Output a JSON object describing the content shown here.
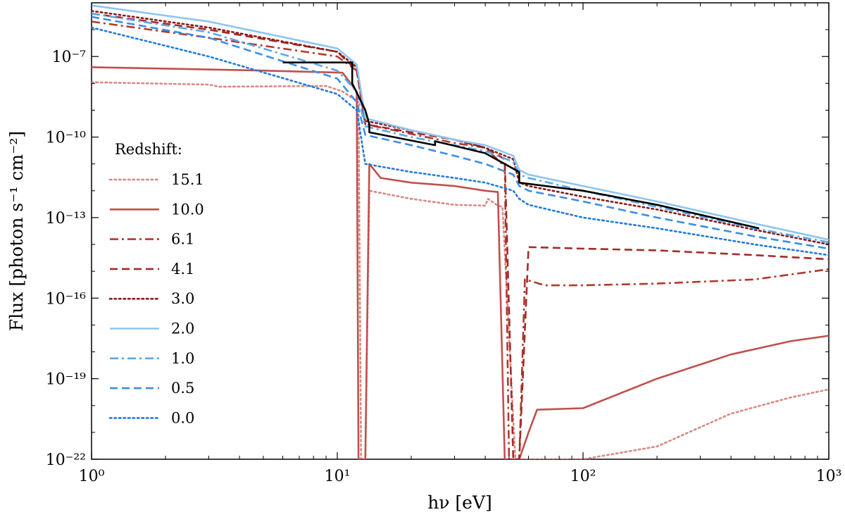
{
  "chart_data": {
    "type": "line",
    "title": "",
    "xlabel": "hν [eV]",
    "ylabel": "Flux [photon s⁻¹ cm⁻²]",
    "xscale": "log",
    "yscale": "log",
    "xlim": [
      1,
      1000
    ],
    "ylim": [
      1e-22,
      1e-05
    ],
    "x_ticks": [
      {
        "value": 1,
        "label": "10⁰"
      },
      {
        "value": 10,
        "label": "10¹"
      },
      {
        "value": 100,
        "label": "10²"
      },
      {
        "value": 1000,
        "label": "10³"
      }
    ],
    "y_ticks": [
      {
        "value": 1e-22,
        "label": "10⁻²²"
      },
      {
        "value": 1e-19,
        "label": "10⁻¹⁹"
      },
      {
        "value": 1e-16,
        "label": "10⁻¹⁶"
      },
      {
        "value": 1e-13,
        "label": "10⁻¹³"
      },
      {
        "value": 1e-10,
        "label": "10⁻¹⁰"
      },
      {
        "value": 1e-07,
        "label": "10⁻⁷"
      }
    ],
    "grid": false,
    "legend": {
      "title": "Redshift:",
      "placement": "left"
    },
    "series": [
      {
        "name": "15.1",
        "color": "#d98880",
        "dash": "dotted",
        "x": [
          1,
          3,
          3.3,
          9,
          10.5,
          12.2,
          12.5,
          13,
          13.5,
          20,
          30,
          40,
          41,
          45,
          47,
          53,
          60,
          100,
          200,
          400,
          700,
          1000
        ],
        "y": [
          1.1e-08,
          9e-09,
          7.5e-09,
          8e-09,
          5e-09,
          2e-09,
          1e-22,
          1e-22,
          1e-12,
          5e-13,
          3e-13,
          2.8e-13,
          5e-13,
          2.8e-13,
          2.5e-13,
          1e-22,
          1e-22,
          1e-22,
          3e-22,
          5e-21,
          2e-20,
          4e-20
        ]
      },
      {
        "name": "10.0",
        "color": "#c0504d",
        "dash": "solid",
        "x": [
          1,
          5,
          10.5,
          12,
          12.2,
          12.5,
          13,
          13.5,
          15,
          20,
          30,
          40,
          45,
          48,
          52,
          55,
          60,
          65,
          100,
          200,
          400,
          700,
          1000
        ],
        "y": [
          4e-08,
          3e-08,
          2.5e-08,
          5e-09,
          1e-22,
          1e-22,
          1e-22,
          1e-11,
          3e-12,
          2e-12,
          1.5e-12,
          1e-12,
          9e-13,
          1e-22,
          1e-22,
          1e-22,
          1e-21,
          7e-21,
          8e-21,
          1e-19,
          8e-19,
          2.5e-18,
          4e-18
        ]
      },
      {
        "name": "6.1",
        "color": "#b03a2e",
        "dash": "dashdot",
        "x": [
          1,
          3,
          10,
          12,
          13,
          20,
          30,
          40,
          48,
          50,
          52,
          55,
          58,
          70,
          100,
          200,
          500,
          1000
        ],
        "y": [
          2e-06,
          5e-07,
          1e-07,
          3e-08,
          3e-10,
          1.3e-10,
          6e-11,
          4e-11,
          8e-12,
          1e-22,
          1e-22,
          1e-22,
          5e-16,
          3e-16,
          3e-16,
          3.5e-16,
          5e-16,
          1.2e-15
        ]
      },
      {
        "name": "4.1",
        "color": "#a52a2a",
        "dash": "dashed",
        "x": [
          1,
          3,
          10,
          12,
          13,
          20,
          30,
          40,
          48,
          52,
          55,
          60,
          100,
          200,
          500,
          1000
        ],
        "y": [
          4e-06,
          1e-06,
          1.5e-07,
          3e-08,
          3e-10,
          1.5e-10,
          8e-11,
          4e-11,
          1.5e-11,
          1e-22,
          1e-22,
          8e-15,
          7e-15,
          6e-15,
          4e-15,
          2.8e-15
        ]
      },
      {
        "name": "3.0",
        "color": "#8b1a1a",
        "dash": "dotted",
        "x": [
          1,
          3,
          10,
          12,
          13,
          20,
          30,
          40,
          52,
          55,
          60,
          100,
          200,
          500,
          1000
        ],
        "y": [
          5e-06,
          1.2e-06,
          1.5e-07,
          4e-08,
          4e-10,
          1.8e-10,
          8e-11,
          4e-11,
          1.5e-11,
          2e-12,
          1.5e-12,
          6e-13,
          2e-13,
          3.5e-14,
          1e-14
        ]
      },
      {
        "name": "2.0",
        "color": "#8ec5f0",
        "dash": "solid",
        "x": [
          1,
          3,
          10,
          12,
          13,
          20,
          30,
          40,
          52,
          55,
          60,
          100,
          200,
          500,
          1000
        ],
        "y": [
          8e-06,
          2e-06,
          2e-07,
          5e-08,
          5e-10,
          1.8e-10,
          8e-11,
          5e-11,
          2e-11,
          6e-12,
          4e-12,
          1.5e-12,
          4e-13,
          6e-14,
          1.5e-14
        ]
      },
      {
        "name": "1.0",
        "color": "#5aa7e8",
        "dash": "dashdot",
        "x": [
          1,
          3,
          10,
          12,
          13,
          20,
          30,
          40,
          52,
          55,
          60,
          100,
          200,
          500,
          1000
        ],
        "y": [
          4e-06,
          8e-07,
          3e-08,
          5e-09,
          2.5e-10,
          1e-10,
          5e-11,
          3e-11,
          1.2e-11,
          4e-12,
          3e-12,
          1e-12,
          2.5e-13,
          4e-14,
          1.2e-14
        ]
      },
      {
        "name": "0.5",
        "color": "#3a8ee6",
        "dash": "dashed",
        "x": [
          1,
          3,
          10,
          12,
          13,
          20,
          30,
          40,
          52,
          55,
          60,
          100,
          200,
          500,
          1000
        ],
        "y": [
          3e-06,
          5e-07,
          1.5e-08,
          2e-09,
          1.2e-10,
          5e-11,
          2e-11,
          1e-11,
          4e-12,
          1.5e-12,
          1e-12,
          4e-13,
          1e-13,
          2e-14,
          7e-15
        ]
      },
      {
        "name": "0.0",
        "color": "#1f7bdc",
        "dash": "dotted",
        "x": [
          1,
          3,
          10,
          12,
          13,
          20,
          30,
          40,
          52,
          55,
          60,
          100,
          200,
          500,
          1000
        ],
        "y": [
          1.2e-06,
          1e-07,
          4e-09,
          1e-09,
          1e-11,
          5e-12,
          3e-12,
          2e-12,
          1e-12,
          5e-13,
          3e-13,
          1e-13,
          4e-14,
          1e-14,
          4e-15
        ]
      },
      {
        "name": "",
        "color": "#000000",
        "dash": "solid",
        "x": [
          6,
          11.5,
          11.5,
          13,
          13.5,
          13.5,
          25,
          25,
          40,
          55,
          55,
          100,
          200,
          520
        ],
        "y": [
          6e-08,
          6e-08,
          1e-08,
          1e-09,
          3e-10,
          1.5e-10,
          5e-11,
          7e-11,
          2.5e-11,
          5e-12,
          2e-12,
          1e-12,
          3e-13,
          4e-14
        ]
      }
    ]
  }
}
